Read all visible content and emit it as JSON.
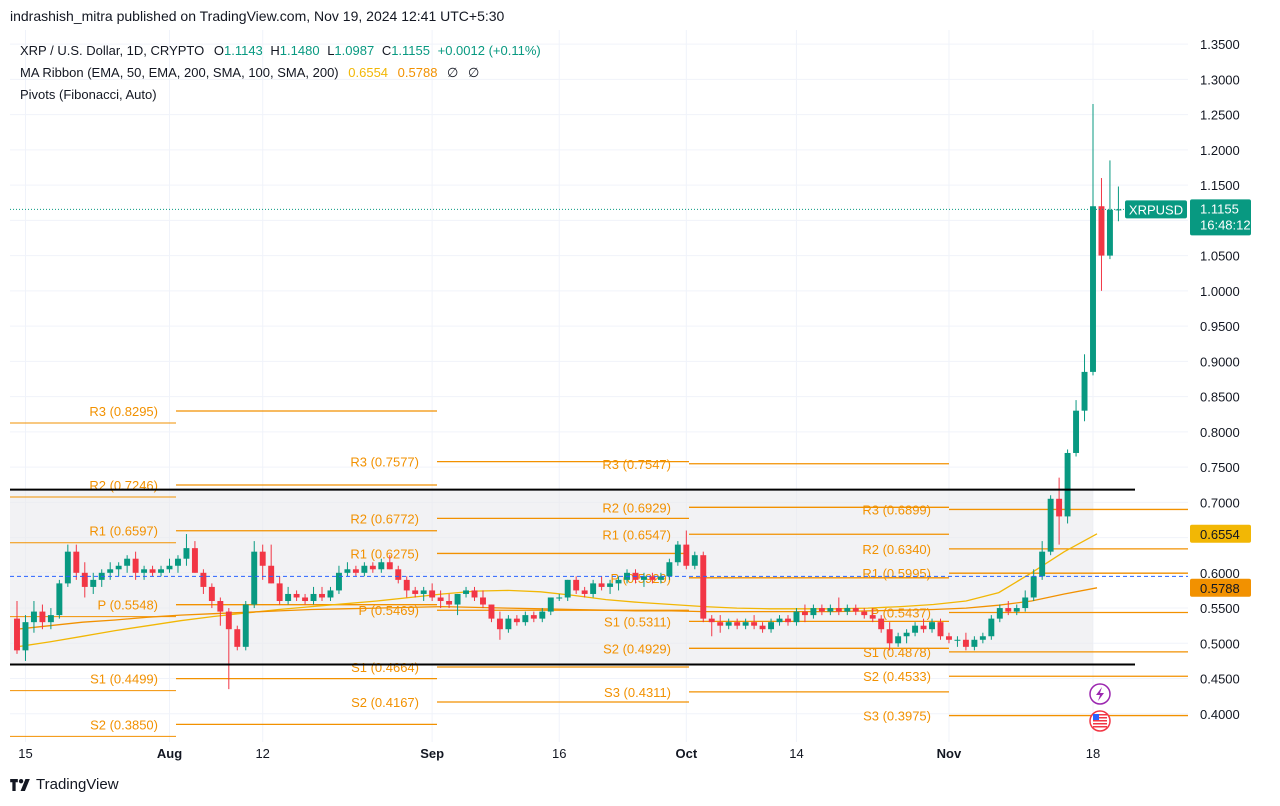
{
  "publisher_line": "indrashish_mitra published on TradingView.com, Nov 19, 2024 12:41 UTC+5:30",
  "legend": {
    "symbol": "XRP / U.S. Dollar, 1D, CRYPTO",
    "o_label": "O",
    "o": "1.1143",
    "h_label": "H",
    "h": "1.1480",
    "l_label": "L",
    "l": "1.0987",
    "c_label": "C",
    "c": "1.1155",
    "change": "+0.0012 (+0.11%)",
    "ma_name": "MA Ribbon (EMA, 50, EMA, 200, SMA, 100, SMA, 200)",
    "ma1": "0.6554",
    "ma2": "0.5788",
    "ma_na1": "∅",
    "ma_na2": "∅",
    "pivots_name": "Pivots (Fibonacci, Auto)"
  },
  "footer": {
    "brand": "TradingView"
  },
  "colors": {
    "up": "#089981",
    "down": "#f23645",
    "pivot": "#f29100",
    "ma_light": "#f2b705",
    "ma_dark": "#f29100",
    "band": "#e9e9ed",
    "level_line": "#000000",
    "price_line": "#089981",
    "prev_close": "#2962ff"
  },
  "icons": [
    "lightning-icon",
    "us-flag-icon"
  ],
  "chart_data": {
    "type": "candlestick",
    "symbol": "XRPUSD",
    "interval": "1D",
    "ylim": [
      0.36,
      1.37
    ],
    "y_ticks": [
      "1.3500",
      "1.3000",
      "1.2500",
      "1.2000",
      "1.1500",
      "1.1000",
      "1.0500",
      "1.0000",
      "0.9500",
      "0.9000",
      "0.8500",
      "0.8000",
      "0.7500",
      "0.7000",
      "0.6500",
      "0.6000",
      "0.5500",
      "0.5000",
      "0.4500",
      "0.4000"
    ],
    "x_ticks": [
      {
        "label": "15",
        "date": "2024-07-15"
      },
      {
        "label": "Aug",
        "date": "2024-08-01"
      },
      {
        "label": "12",
        "date": "2024-08-12"
      },
      {
        "label": "Sep",
        "date": "2024-09-01"
      },
      {
        "label": "16",
        "date": "2024-09-16"
      },
      {
        "label": "Oct",
        "date": "2024-10-01"
      },
      {
        "label": "14",
        "date": "2024-10-14"
      },
      {
        "label": "Nov",
        "date": "2024-11-01"
      },
      {
        "label": "18",
        "date": "2024-11-18"
      }
    ],
    "date_range": [
      "2024-07-14",
      "2024-11-18"
    ],
    "candles": [
      [
        0.535,
        0.56,
        0.485,
        0.49
      ],
      [
        0.49,
        0.54,
        0.475,
        0.53
      ],
      [
        0.53,
        0.56,
        0.515,
        0.545
      ],
      [
        0.545,
        0.555,
        0.52,
        0.53
      ],
      [
        0.53,
        0.55,
        0.52,
        0.54
      ],
      [
        0.54,
        0.59,
        0.535,
        0.585
      ],
      [
        0.585,
        0.64,
        0.58,
        0.63
      ],
      [
        0.63,
        0.64,
        0.59,
        0.6
      ],
      [
        0.6,
        0.615,
        0.565,
        0.58
      ],
      [
        0.58,
        0.6,
        0.57,
        0.59
      ],
      [
        0.59,
        0.605,
        0.58,
        0.6
      ],
      [
        0.6,
        0.615,
        0.59,
        0.605
      ],
      [
        0.605,
        0.615,
        0.595,
        0.61
      ],
      [
        0.61,
        0.625,
        0.6,
        0.62
      ],
      [
        0.62,
        0.63,
        0.59,
        0.6
      ],
      [
        0.6,
        0.61,
        0.59,
        0.605
      ],
      [
        0.605,
        0.61,
        0.595,
        0.6
      ],
      [
        0.6,
        0.61,
        0.595,
        0.605
      ],
      [
        0.605,
        0.62,
        0.6,
        0.61
      ],
      [
        0.61,
        0.625,
        0.6,
        0.62
      ],
      [
        0.62,
        0.655,
        0.61,
        0.635
      ],
      [
        0.635,
        0.645,
        0.6,
        0.6
      ],
      [
        0.6,
        0.605,
        0.57,
        0.58
      ],
      [
        0.58,
        0.585,
        0.55,
        0.56
      ],
      [
        0.56,
        0.565,
        0.525,
        0.545
      ],
      [
        0.545,
        0.55,
        0.435,
        0.52
      ],
      [
        0.52,
        0.525,
        0.49,
        0.495
      ],
      [
        0.495,
        0.56,
        0.49,
        0.555
      ],
      [
        0.555,
        0.645,
        0.55,
        0.63
      ],
      [
        0.63,
        0.64,
        0.59,
        0.61
      ],
      [
        0.61,
        0.64,
        0.585,
        0.585
      ],
      [
        0.585,
        0.595,
        0.555,
        0.56
      ],
      [
        0.56,
        0.58,
        0.555,
        0.57
      ],
      [
        0.57,
        0.575,
        0.56,
        0.565
      ],
      [
        0.565,
        0.57,
        0.555,
        0.56
      ],
      [
        0.56,
        0.58,
        0.555,
        0.57
      ],
      [
        0.57,
        0.58,
        0.56,
        0.565
      ],
      [
        0.565,
        0.58,
        0.56,
        0.575
      ],
      [
        0.575,
        0.61,
        0.57,
        0.6
      ],
      [
        0.6,
        0.615,
        0.595,
        0.605
      ],
      [
        0.605,
        0.61,
        0.595,
        0.6
      ],
      [
        0.6,
        0.615,
        0.595,
        0.61
      ],
      [
        0.61,
        0.615,
        0.6,
        0.605
      ],
      [
        0.605,
        0.62,
        0.6,
        0.615
      ],
      [
        0.615,
        0.625,
        0.605,
        0.605
      ],
      [
        0.605,
        0.61,
        0.585,
        0.59
      ],
      [
        0.59,
        0.595,
        0.565,
        0.575
      ],
      [
        0.575,
        0.58,
        0.565,
        0.57
      ],
      [
        0.57,
        0.58,
        0.56,
        0.575
      ],
      [
        0.575,
        0.585,
        0.56,
        0.565
      ],
      [
        0.565,
        0.575,
        0.55,
        0.56
      ],
      [
        0.56,
        0.57,
        0.55,
        0.555
      ],
      [
        0.555,
        0.57,
        0.54,
        0.57
      ],
      [
        0.57,
        0.58,
        0.565,
        0.575
      ],
      [
        0.575,
        0.58,
        0.56,
        0.565
      ],
      [
        0.565,
        0.575,
        0.55,
        0.555
      ],
      [
        0.555,
        0.555,
        0.53,
        0.535
      ],
      [
        0.535,
        0.545,
        0.505,
        0.52
      ],
      [
        0.52,
        0.54,
        0.515,
        0.535
      ],
      [
        0.535,
        0.54,
        0.525,
        0.53
      ],
      [
        0.53,
        0.545,
        0.525,
        0.54
      ],
      [
        0.54,
        0.545,
        0.53,
        0.535
      ],
      [
        0.535,
        0.55,
        0.53,
        0.545
      ],
      [
        0.545,
        0.565,
        0.54,
        0.565
      ],
      [
        0.565,
        0.57,
        0.56,
        0.565
      ],
      [
        0.565,
        0.59,
        0.56,
        0.59
      ],
      [
        0.59,
        0.595,
        0.57,
        0.575
      ],
      [
        0.575,
        0.58,
        0.565,
        0.57
      ],
      [
        0.57,
        0.59,
        0.565,
        0.585
      ],
      [
        0.585,
        0.595,
        0.575,
        0.58
      ],
      [
        0.58,
        0.59,
        0.57,
        0.585
      ],
      [
        0.585,
        0.595,
        0.575,
        0.59
      ],
      [
        0.59,
        0.605,
        0.585,
        0.6
      ],
      [
        0.6,
        0.605,
        0.585,
        0.59
      ],
      [
        0.59,
        0.6,
        0.58,
        0.595
      ],
      [
        0.595,
        0.6,
        0.585,
        0.59
      ],
      [
        0.59,
        0.6,
        0.585,
        0.595
      ],
      [
        0.595,
        0.62,
        0.59,
        0.615
      ],
      [
        0.615,
        0.645,
        0.61,
        0.64
      ],
      [
        0.64,
        0.66,
        0.605,
        0.61
      ],
      [
        0.61,
        0.63,
        0.605,
        0.625
      ],
      [
        0.625,
        0.63,
        0.53,
        0.535
      ],
      [
        0.535,
        0.54,
        0.51,
        0.53
      ],
      [
        0.53,
        0.54,
        0.515,
        0.525
      ],
      [
        0.525,
        0.535,
        0.52,
        0.53
      ],
      [
        0.53,
        0.535,
        0.52,
        0.525
      ],
      [
        0.525,
        0.535,
        0.52,
        0.53
      ],
      [
        0.53,
        0.54,
        0.52,
        0.525
      ],
      [
        0.525,
        0.53,
        0.515,
        0.52
      ],
      [
        0.52,
        0.535,
        0.515,
        0.53
      ],
      [
        0.53,
        0.54,
        0.525,
        0.535
      ],
      [
        0.535,
        0.54,
        0.525,
        0.53
      ],
      [
        0.53,
        0.55,
        0.525,
        0.545
      ],
      [
        0.545,
        0.555,
        0.53,
        0.54
      ],
      [
        0.54,
        0.555,
        0.535,
        0.55
      ],
      [
        0.55,
        0.555,
        0.54,
        0.545
      ],
      [
        0.545,
        0.555,
        0.54,
        0.55
      ],
      [
        0.55,
        0.565,
        0.54,
        0.545
      ],
      [
        0.545,
        0.555,
        0.54,
        0.55
      ],
      [
        0.55,
        0.555,
        0.54,
        0.545
      ],
      [
        0.545,
        0.55,
        0.535,
        0.54
      ],
      [
        0.54,
        0.55,
        0.53,
        0.535
      ],
      [
        0.535,
        0.54,
        0.515,
        0.52
      ],
      [
        0.52,
        0.53,
        0.49,
        0.5
      ],
      [
        0.5,
        0.515,
        0.495,
        0.51
      ],
      [
        0.51,
        0.52,
        0.5,
        0.515
      ],
      [
        0.515,
        0.53,
        0.51,
        0.525
      ],
      [
        0.525,
        0.535,
        0.515,
        0.52
      ],
      [
        0.52,
        0.535,
        0.515,
        0.53
      ],
      [
        0.53,
        0.535,
        0.505,
        0.51
      ],
      [
        0.51,
        0.515,
        0.5,
        0.505
      ],
      [
        0.505,
        0.51,
        0.495,
        0.505
      ],
      [
        0.505,
        0.515,
        0.49,
        0.495
      ],
      [
        0.495,
        0.51,
        0.49,
        0.505
      ],
      [
        0.505,
        0.515,
        0.5,
        0.51
      ],
      [
        0.51,
        0.54,
        0.505,
        0.535
      ],
      [
        0.535,
        0.555,
        0.53,
        0.55
      ],
      [
        0.55,
        0.56,
        0.54,
        0.545
      ],
      [
        0.545,
        0.555,
        0.54,
        0.55
      ],
      [
        0.55,
        0.575,
        0.545,
        0.565
      ],
      [
        0.565,
        0.605,
        0.56,
        0.595
      ],
      [
        0.595,
        0.645,
        0.59,
        0.63
      ],
      [
        0.63,
        0.71,
        0.625,
        0.705
      ],
      [
        0.705,
        0.735,
        0.64,
        0.68
      ],
      [
        0.68,
        0.775,
        0.67,
        0.77
      ],
      [
        0.77,
        0.845,
        0.765,
        0.83
      ],
      [
        0.83,
        0.91,
        0.815,
        0.885
      ],
      [
        0.885,
        1.265,
        0.88,
        1.12
      ],
      [
        1.12,
        1.16,
        1.0,
        1.05
      ],
      [
        1.05,
        1.185,
        1.045,
        1.115
      ],
      [
        1.1143,
        1.148,
        1.0987,
        1.1155
      ]
    ],
    "ma_series": [
      {
        "values": [
          0.495,
          0.502,
          0.51,
          0.518,
          0.525,
          0.532,
          0.538,
          0.543,
          0.548,
          0.552,
          0.556,
          0.56,
          0.565,
          0.57,
          0.574,
          0.575,
          0.573,
          0.568,
          0.562,
          0.558,
          0.555,
          0.552,
          0.55,
          0.549,
          0.549,
          0.549,
          0.55,
          0.552,
          0.555,
          0.56,
          0.572,
          0.6,
          0.63,
          0.6554
        ]
      },
      {
        "values": [
          0.52,
          0.525,
          0.53,
          0.533,
          0.537,
          0.54,
          0.542,
          0.544,
          0.546,
          0.548,
          0.549,
          0.55,
          0.551,
          0.552,
          0.551,
          0.55,
          0.549,
          0.548,
          0.547,
          0.546,
          0.546,
          0.545,
          0.545,
          0.545,
          0.545,
          0.545,
          0.546,
          0.547,
          0.548,
          0.55,
          0.554,
          0.56,
          0.57,
          0.5788
        ]
      }
    ],
    "pivot_periods": [
      {
        "levels": [
          {
            "name": "R3",
            "value": 0.8295,
            "label": "R3 (0.8295)"
          },
          {
            "name": "R2",
            "value": 0.7246,
            "label": "R2 (0.7246)"
          },
          {
            "name": "R1",
            "value": 0.6597,
            "label": "R1 (0.6597)"
          },
          {
            "name": "P",
            "value": 0.5548,
            "label": "P (0.5548)"
          },
          {
            "name": "S1",
            "value": 0.4499,
            "label": "S1 (0.4499)"
          },
          {
            "name": "S2",
            "value": 0.385,
            "label": "S2 (0.3850)"
          }
        ]
      },
      {
        "levels": [
          {
            "name": "R3",
            "value": 0.7577,
            "label": "R3 (0.7577)"
          },
          {
            "name": "R2",
            "value": 0.6772,
            "label": "R2 (0.6772)"
          },
          {
            "name": "R1",
            "value": 0.6275,
            "label": "R1 (0.6275)"
          },
          {
            "name": "P",
            "value": 0.5469,
            "label": "P (0.5469)"
          },
          {
            "name": "S1",
            "value": 0.4664,
            "label": "S1 (0.4664)"
          },
          {
            "name": "S2",
            "value": 0.4167,
            "label": "S2 (0.4167)"
          }
        ]
      },
      {
        "levels": [
          {
            "name": "R3",
            "value": 0.7547,
            "label": "R3 (0.7547)"
          },
          {
            "name": "R2",
            "value": 0.6929,
            "label": "R2 (0.6929)"
          },
          {
            "name": "R1",
            "value": 0.6547,
            "label": "R1 (0.6547)"
          },
          {
            "name": "P",
            "value": 0.5929,
            "label": "P (0.5929)"
          },
          {
            "name": "S1",
            "value": 0.5311,
            "label": "S1 (0.5311)"
          },
          {
            "name": "S2",
            "value": 0.4929,
            "label": "S2 (0.4929)"
          },
          {
            "name": "S3",
            "value": 0.4311,
            "label": "S3 (0.4311)"
          }
        ]
      },
      {
        "levels": [
          {
            "name": "R3",
            "value": 0.6899,
            "label": "R3 (0.6899)"
          },
          {
            "name": "R2",
            "value": 0.634,
            "label": "R2 (0.6340)"
          },
          {
            "name": "R1",
            "value": 0.5995,
            "label": "R1 (0.5995)"
          },
          {
            "name": "P",
            "value": 0.5437,
            "label": "P (0.5437)"
          },
          {
            "name": "S1",
            "value": 0.4878,
            "label": "S1 (0.4878)"
          },
          {
            "name": "S2",
            "value": 0.4533,
            "label": "S2 (0.4533)"
          },
          {
            "name": "S3",
            "value": 0.3975,
            "label": "S3 (0.3975)"
          }
        ]
      }
    ],
    "range_box": {
      "top": 0.718,
      "bottom": 0.47
    },
    "last_price": {
      "label": "XRPUSD",
      "value": "1.1155",
      "countdown": "16:48:12",
      "y": 1.1155
    },
    "ma_tags": [
      {
        "value": "0.6554",
        "y": 0.6554
      },
      {
        "value": "0.5788",
        "y": 0.5788
      }
    ],
    "prev_close_line": 0.595
  }
}
